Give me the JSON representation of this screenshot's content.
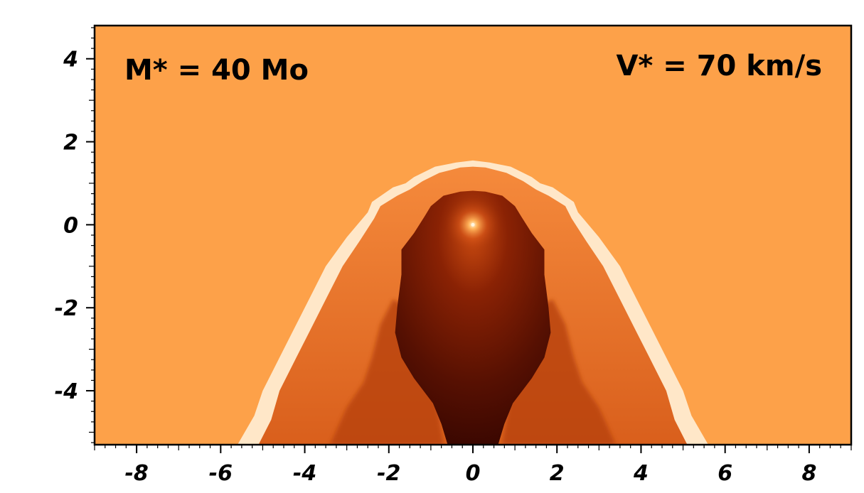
{
  "chart_data": {
    "type": "heatmap",
    "title": "",
    "xlabel": "",
    "ylabel": "",
    "xlim": [
      -9.0,
      9.0
    ],
    "ylim": [
      -5.3,
      4.8
    ],
    "x_ticks": [
      -8,
      -6,
      -4,
      -2,
      0,
      2,
      4,
      6,
      8
    ],
    "y_ticks": [
      4,
      2,
      0,
      -2,
      -4
    ],
    "x_tick_labels": [
      "-8",
      "-6",
      "-4",
      "-2",
      "0",
      "2",
      "4",
      "6",
      "8"
    ],
    "y_tick_labels": [
      "4",
      "2",
      "0",
      "-2",
      "-4"
    ],
    "grid": false,
    "colorbar": false,
    "annotations": {
      "mass": "M* = 40 Mo",
      "velocity": "V* = 70 km/s"
    },
    "colors": {
      "ambient_medium": "#fda149",
      "outer_shell": "#ffe7c8",
      "shocked_wind": "#e07025",
      "inner_wind_center": "#a53307",
      "inner_wind_edge": "#3a0600",
      "star_glow": "#ffd09a"
    },
    "features": {
      "star_position": [
        0,
        0
      ],
      "bow_shock_apex_y": 1.55,
      "termination_shock_apex_y": 0.8,
      "outer_shell_half_width_at_bottom": 5.6,
      "inner_cavity_half_width_at_bottom": 0.6
    }
  }
}
